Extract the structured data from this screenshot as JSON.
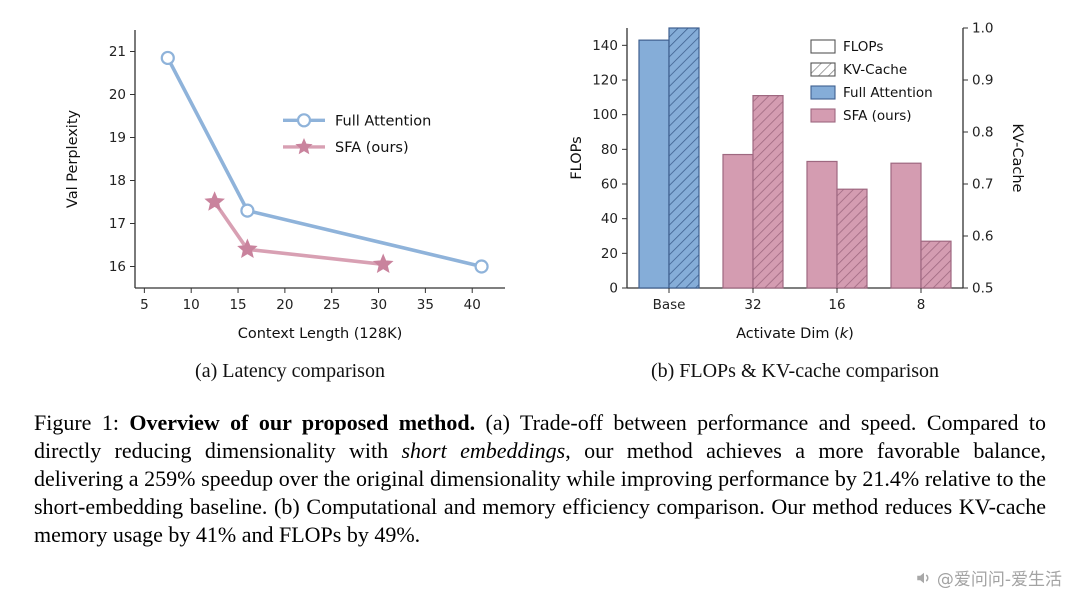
{
  "figure": {
    "subcaption_a": "(a) Latency comparison",
    "subcaption_b": "(b) FLOPs & KV-cache comparison"
  },
  "caption": {
    "prefix": "Figure 1: ",
    "bold": "Overview of our proposed method.",
    "a_text1": " (a) Trade-off between performance and speed. Compared to directly reducing dimensionality with ",
    "italic": "short embeddings",
    "a_text2": ", our method achieves a more favorable balance, delivering a 259% speedup over the original dimensionality while improving performance by 21.4% relative to the short-embedding baseline. ",
    "b_text": "(b) Computational and memory efficiency comparison. Our method reduces KV-cache memory usage by 41% and FLOPs by 49%."
  },
  "watermark": {
    "text": "@爱问问-爱生活"
  },
  "chart_data": [
    {
      "type": "line",
      "title": "",
      "xlabel": "Context Length (128K)",
      "ylabel": "Val Perplexity",
      "xlim": [
        4,
        43.5
      ],
      "ylim": [
        15.5,
        21.5
      ],
      "xticks": [
        5,
        10,
        15,
        20,
        25,
        30,
        35,
        40
      ],
      "yticks": [
        16,
        17,
        18,
        19,
        20,
        21
      ],
      "grid": false,
      "legend_position": "center-right-inside",
      "series": [
        {
          "name": "Full Attention",
          "x": [
            7.5,
            16,
            41
          ],
          "y": [
            20.85,
            17.3,
            16.0
          ],
          "color": "#8fb3da",
          "marker": "circle-open",
          "marker_fill": "#ffffff"
        },
        {
          "name": "SFA (ours)",
          "x": [
            12.5,
            16,
            30.5
          ],
          "y": [
            17.5,
            16.4,
            16.05
          ],
          "color": "#d8a0b3",
          "marker": "star",
          "marker_fill": "#c9839d"
        }
      ],
      "axis_color": "#333333"
    },
    {
      "type": "bar",
      "categories": [
        "Base",
        "32",
        "16",
        "8"
      ],
      "xlabel_parts": [
        "Activate Dim (",
        "k",
        ")"
      ],
      "ylabel_left": "FLOPs",
      "ylabel_right": "KV-Cache",
      "ylim_left": [
        0,
        150
      ],
      "yticks_left": [
        0,
        20,
        40,
        60,
        80,
        100,
        120,
        140
      ],
      "ylim_right": [
        0.5,
        1.0
      ],
      "yticks_right": [
        0.5,
        0.6,
        0.7,
        0.8,
        0.9,
        1.0
      ],
      "flops_values": [
        143,
        77,
        73,
        72
      ],
      "kv_cache_values": [
        1.0,
        0.87,
        0.69,
        0.59
      ],
      "legend": [
        "FLOPs",
        "KV-Cache",
        "Full Attention",
        "SFA (ours)"
      ],
      "colors": {
        "blue": "#85add8",
        "blue_edge": "#3f608f",
        "pink": "#d49cb1",
        "pink_edge": "#9e6880",
        "legend_edge": "#555555",
        "axis": "#333333"
      },
      "blue_categories": [
        "Base"
      ]
    }
  ]
}
